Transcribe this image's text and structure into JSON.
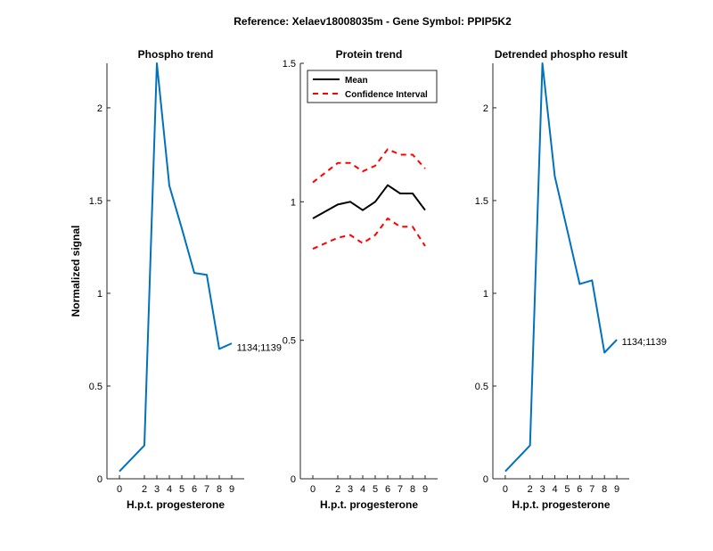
{
  "figure": {
    "suptitle": "Reference:  Xelaev18008035m - Gene Symbol:  PPIP5K2"
  },
  "chart_data": [
    {
      "type": "line",
      "title": "Phospho trend",
      "xlabel": "H.p.t. progesterone",
      "ylabel": "Normalized signal",
      "xlim": [
        -1,
        10
      ],
      "ylim": [
        0,
        2.24
      ],
      "xticks": [
        0,
        2,
        3,
        4,
        5,
        6,
        7,
        8,
        9
      ],
      "xticklabels": [
        "0",
        "2",
        "3",
        "4",
        "5",
        "6",
        "7",
        "8",
        "9"
      ],
      "yticks": [
        0,
        0.5,
        1,
        1.5,
        2
      ],
      "yticklabels": [
        "0",
        "0.5",
        "1",
        "1.5",
        "2"
      ],
      "grid": false,
      "series": [
        {
          "name": "",
          "color": "#0072BD",
          "style": "solid",
          "x": [
            0,
            2,
            3,
            4,
            5,
            6,
            7,
            8,
            9
          ],
          "y": [
            0.04,
            0.18,
            2.24,
            1.58,
            1.35,
            1.11,
            1.1,
            0.7,
            0.73
          ]
        }
      ],
      "annotations": [
        {
          "text": "1134;1139",
          "x": 9.4,
          "y": 0.71
        }
      ]
    },
    {
      "type": "line",
      "title": "Protein trend",
      "xlabel": "H.p.t. progesterone",
      "ylabel": "",
      "xlim": [
        -1,
        10
      ],
      "ylim": [
        0,
        1.5
      ],
      "xticks": [
        0,
        2,
        3,
        4,
        5,
        6,
        7,
        8,
        9
      ],
      "xticklabels": [
        "0",
        "2",
        "3",
        "4",
        "5",
        "6",
        "7",
        "8",
        "9"
      ],
      "yticks": [
        0,
        0.5,
        1,
        1.5
      ],
      "yticklabels": [
        "0",
        "0.5",
        "1",
        "1.5"
      ],
      "grid": false,
      "legend": "top-left",
      "series": [
        {
          "name": "Mean",
          "color": "#000000",
          "style": "solid",
          "x": [
            0,
            2,
            3,
            4,
            5,
            6,
            7,
            8,
            9
          ],
          "y": [
            0.94,
            0.99,
            1.0,
            0.97,
            1.0,
            1.06,
            1.03,
            1.03,
            0.97
          ]
        },
        {
          "name": "Confidence Interval",
          "color": "#FF0000",
          "style": "dashed",
          "x": [
            0,
            2,
            3,
            4,
            5,
            6,
            7,
            8,
            9
          ],
          "y": [
            1.07,
            1.14,
            1.14,
            1.11,
            1.13,
            1.19,
            1.17,
            1.17,
            1.12
          ]
        },
        {
          "name": "",
          "color": "#FF0000",
          "style": "dashed",
          "x": [
            0,
            2,
            3,
            4,
            5,
            6,
            7,
            8,
            9
          ],
          "y": [
            0.83,
            0.87,
            0.88,
            0.85,
            0.88,
            0.94,
            0.91,
            0.91,
            0.84
          ]
        }
      ],
      "annotations": []
    },
    {
      "type": "line",
      "title": "Detrended phospho result",
      "xlabel": "H.p.t. progesterone",
      "ylabel": "",
      "xlim": [
        -1,
        10
      ],
      "ylim": [
        0,
        2.24
      ],
      "xticks": [
        0,
        2,
        3,
        4,
        5,
        6,
        7,
        8,
        9
      ],
      "xticklabels": [
        "0",
        "2",
        "3",
        "4",
        "5",
        "6",
        "7",
        "8",
        "9"
      ],
      "yticks": [
        0,
        0.5,
        1,
        1.5,
        2
      ],
      "yticklabels": [
        "0",
        "0.5",
        "1",
        "1.5",
        "2"
      ],
      "grid": false,
      "series": [
        {
          "name": "",
          "color": "#0072BD",
          "style": "solid",
          "x": [
            0,
            2,
            3,
            4,
            5,
            6,
            7,
            8,
            9
          ],
          "y": [
            0.04,
            0.18,
            2.24,
            1.63,
            1.34,
            1.05,
            1.07,
            0.68,
            0.75
          ]
        }
      ],
      "annotations": [
        {
          "text": "1134;1139",
          "x": 9.4,
          "y": 0.74
        }
      ]
    }
  ]
}
